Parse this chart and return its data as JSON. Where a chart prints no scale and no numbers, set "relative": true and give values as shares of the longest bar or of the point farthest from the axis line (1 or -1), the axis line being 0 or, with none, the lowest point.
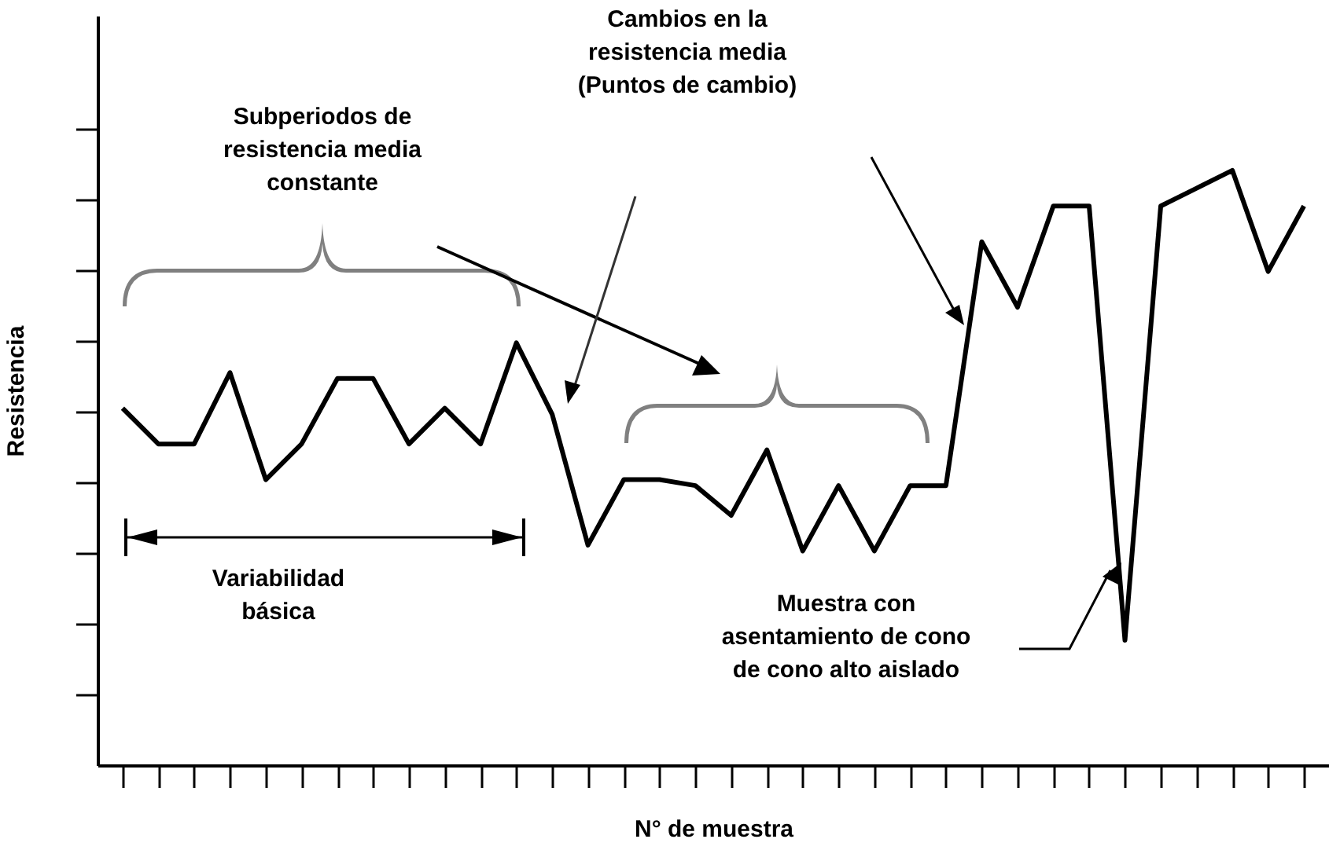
{
  "chart_data": {
    "type": "line",
    "relative": true,
    "xlabel": "N° de muestra",
    "ylabel": "Resistencia",
    "categories": [
      null,
      null,
      null,
      null,
      null,
      null,
      null,
      null,
      null,
      null,
      null,
      null,
      null,
      null,
      null,
      null,
      null,
      null,
      null,
      null,
      null,
      null,
      null,
      null,
      null,
      null,
      null,
      null,
      null,
      null,
      null,
      null,
      null,
      null
    ],
    "series": [
      {
        "color": "#000000",
        "values": [
          0.6,
          0.54,
          0.54,
          0.66,
          0.48,
          0.54,
          0.65,
          0.65,
          0.54,
          0.6,
          0.54,
          0.71,
          0.59,
          0.37,
          0.48,
          0.48,
          0.47,
          0.42,
          0.53,
          0.36,
          0.47,
          0.36,
          0.47,
          0.47,
          0.88,
          0.77,
          0.94,
          0.94,
          0.21,
          0.94,
          0.97,
          1,
          0.83,
          0.94
        ]
      }
    ],
    "annotations": [
      "Subperiodos de\nresistencia media\nconstante",
      "Cambios en la\nresistencia media\n(Puntos de cambio)",
      "Variabilidad\nbásica",
      "Muestra con\nasentamiento de cono\nde cono alto aislado"
    ]
  }
}
